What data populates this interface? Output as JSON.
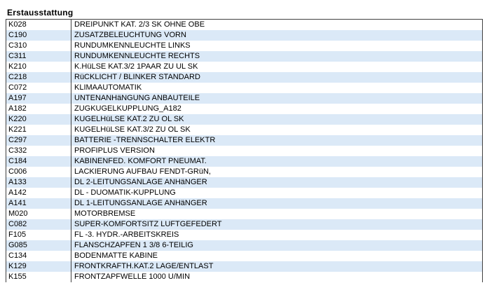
{
  "page": {
    "title": "Erstausstattung"
  },
  "colors": {
    "border": "#404040",
    "row_alt": "#dbe9f7",
    "row_base": "#ffffff",
    "text": "#000000"
  },
  "table": {
    "columns": [
      "code",
      "description"
    ],
    "rows": [
      {
        "code": "K028",
        "description": "DREIPUNKT KAT. 2/3 SK OHNE OBE"
      },
      {
        "code": "C190",
        "description": "ZUSATZBELEUCHTUNG VORN"
      },
      {
        "code": "C310",
        "description": "RUNDUMKENNLEUCHTE LINKS"
      },
      {
        "code": "C311",
        "description": "RUNDUMKENNLEUCHTE RECHTS"
      },
      {
        "code": "K210",
        "description": "K.HüLSE KAT.3/2 1PAAR ZU UL SK"
      },
      {
        "code": "C218",
        "description": "RüCKLICHT / BLINKER STANDARD"
      },
      {
        "code": "C072",
        "description": "KLIMAAUTOMATIK"
      },
      {
        "code": "A197",
        "description": "UNTENANHäNGUNG ANBAUTEILE"
      },
      {
        "code": "A182",
        "description": "ZUGKUGELKUPPLUNG_A182"
      },
      {
        "code": "K220",
        "description": "KUGELHüLSE KAT.2 ZU OL SK"
      },
      {
        "code": "K221",
        "description": "KUGELHüLSE KAT.3/2 ZU OL SK"
      },
      {
        "code": "C297",
        "description": "BATTERIE -TRENNSCHALTER ELEKTR"
      },
      {
        "code": "C332",
        "description": "PROFIPLUS VERSION"
      },
      {
        "code": "C184",
        "description": "KABINENFED. KOMFORT PNEUMAT."
      },
      {
        "code": "C006",
        "description": "LACKIERUNG AUFBAU FENDT-GRüN,"
      },
      {
        "code": "A133",
        "description": "DL 2-LEITUNGSANLAGE ANHäNGER"
      },
      {
        "code": "A142",
        "description": "DL - DUOMATIK-KUPPLUNG"
      },
      {
        "code": "A141",
        "description": "DL 1-LEITUNGSANLAGE ANHäNGER"
      },
      {
        "code": "M020",
        "description": "MOTORBREMSE"
      },
      {
        "code": "C082",
        "description": "SUPER-KOMFORTSITZ LUFTGEFEDERT"
      },
      {
        "code": "F105",
        "description": "FL -3. HYDR.-ARBEITSKREIS"
      },
      {
        "code": "G085",
        "description": "FLANSCHZAPFEN 1 3/8 6-TEILIG"
      },
      {
        "code": "C134",
        "description": "BODENMATTE KABINE"
      },
      {
        "code": "K129",
        "description": "FRONTKRAFTH.KAT.2 LAGE/ENTLAST"
      },
      {
        "code": "K155",
        "description": "FRONTZAPFWELLE 1000 U/MIN"
      }
    ]
  }
}
